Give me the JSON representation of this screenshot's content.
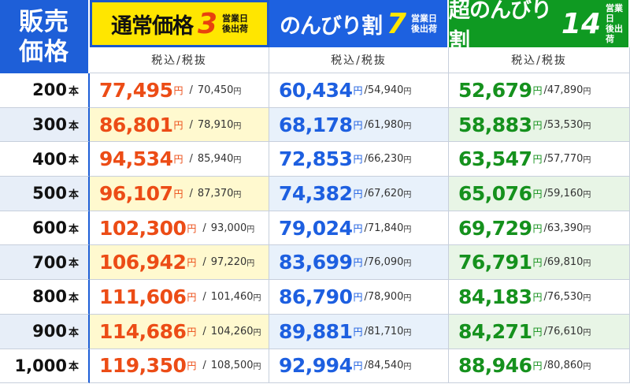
{
  "header": {
    "corner_label": "販売\n価格",
    "plans": [
      {
        "name": "通常価格",
        "days": "3",
        "note": "営業日\n後出荷"
      },
      {
        "name": "のんびり割",
        "days": "7",
        "note": "営業日\n後出荷"
      },
      {
        "name": "超のんびり割",
        "days": "14",
        "note": "営業日\n後出荷"
      }
    ],
    "sub_label": "税込/税抜"
  },
  "unit": "本",
  "yen": "円",
  "rows": [
    {
      "qty": "200",
      "prices": [
        [
          "77,495",
          "70,450"
        ],
        [
          "60,434",
          "54,940"
        ],
        [
          "52,679",
          "47,890"
        ]
      ]
    },
    {
      "qty": "300",
      "prices": [
        [
          "86,801",
          "78,910"
        ],
        [
          "68,178",
          "61,980"
        ],
        [
          "58,883",
          "53,530"
        ]
      ]
    },
    {
      "qty": "400",
      "prices": [
        [
          "94,534",
          "85,940"
        ],
        [
          "72,853",
          "66,230"
        ],
        [
          "63,547",
          "57,770"
        ]
      ]
    },
    {
      "qty": "500",
      "prices": [
        [
          "96,107",
          "87,370"
        ],
        [
          "74,382",
          "67,620"
        ],
        [
          "65,076",
          "59,160"
        ]
      ]
    },
    {
      "qty": "600",
      "prices": [
        [
          "102,300",
          "93,000"
        ],
        [
          "79,024",
          "71,840"
        ],
        [
          "69,729",
          "63,390"
        ]
      ]
    },
    {
      "qty": "700",
      "prices": [
        [
          "106,942",
          "97,220"
        ],
        [
          "83,699",
          "76,090"
        ],
        [
          "76,791",
          "69,810"
        ]
      ]
    },
    {
      "qty": "800",
      "prices": [
        [
          "111,606",
          "101,460"
        ],
        [
          "86,790",
          "78,900"
        ],
        [
          "84,183",
          "76,530"
        ]
      ]
    },
    {
      "qty": "900",
      "prices": [
        [
          "114,686",
          "104,260"
        ],
        [
          "89,881",
          "81,710"
        ],
        [
          "84,271",
          "76,610"
        ]
      ]
    },
    {
      "qty": "1,000",
      "prices": [
        [
          "119,350",
          "108,500"
        ],
        [
          "92,994",
          "84,540"
        ],
        [
          "88,946",
          "80,860"
        ]
      ]
    }
  ],
  "colors": {
    "regular": "#ec4c16",
    "relaxed": "#1d5fe0",
    "super_relaxed": "#15911d",
    "header_blue": "#1e5fd8",
    "header_yellow": "#ffe600",
    "header_green": "#0f9a22"
  }
}
